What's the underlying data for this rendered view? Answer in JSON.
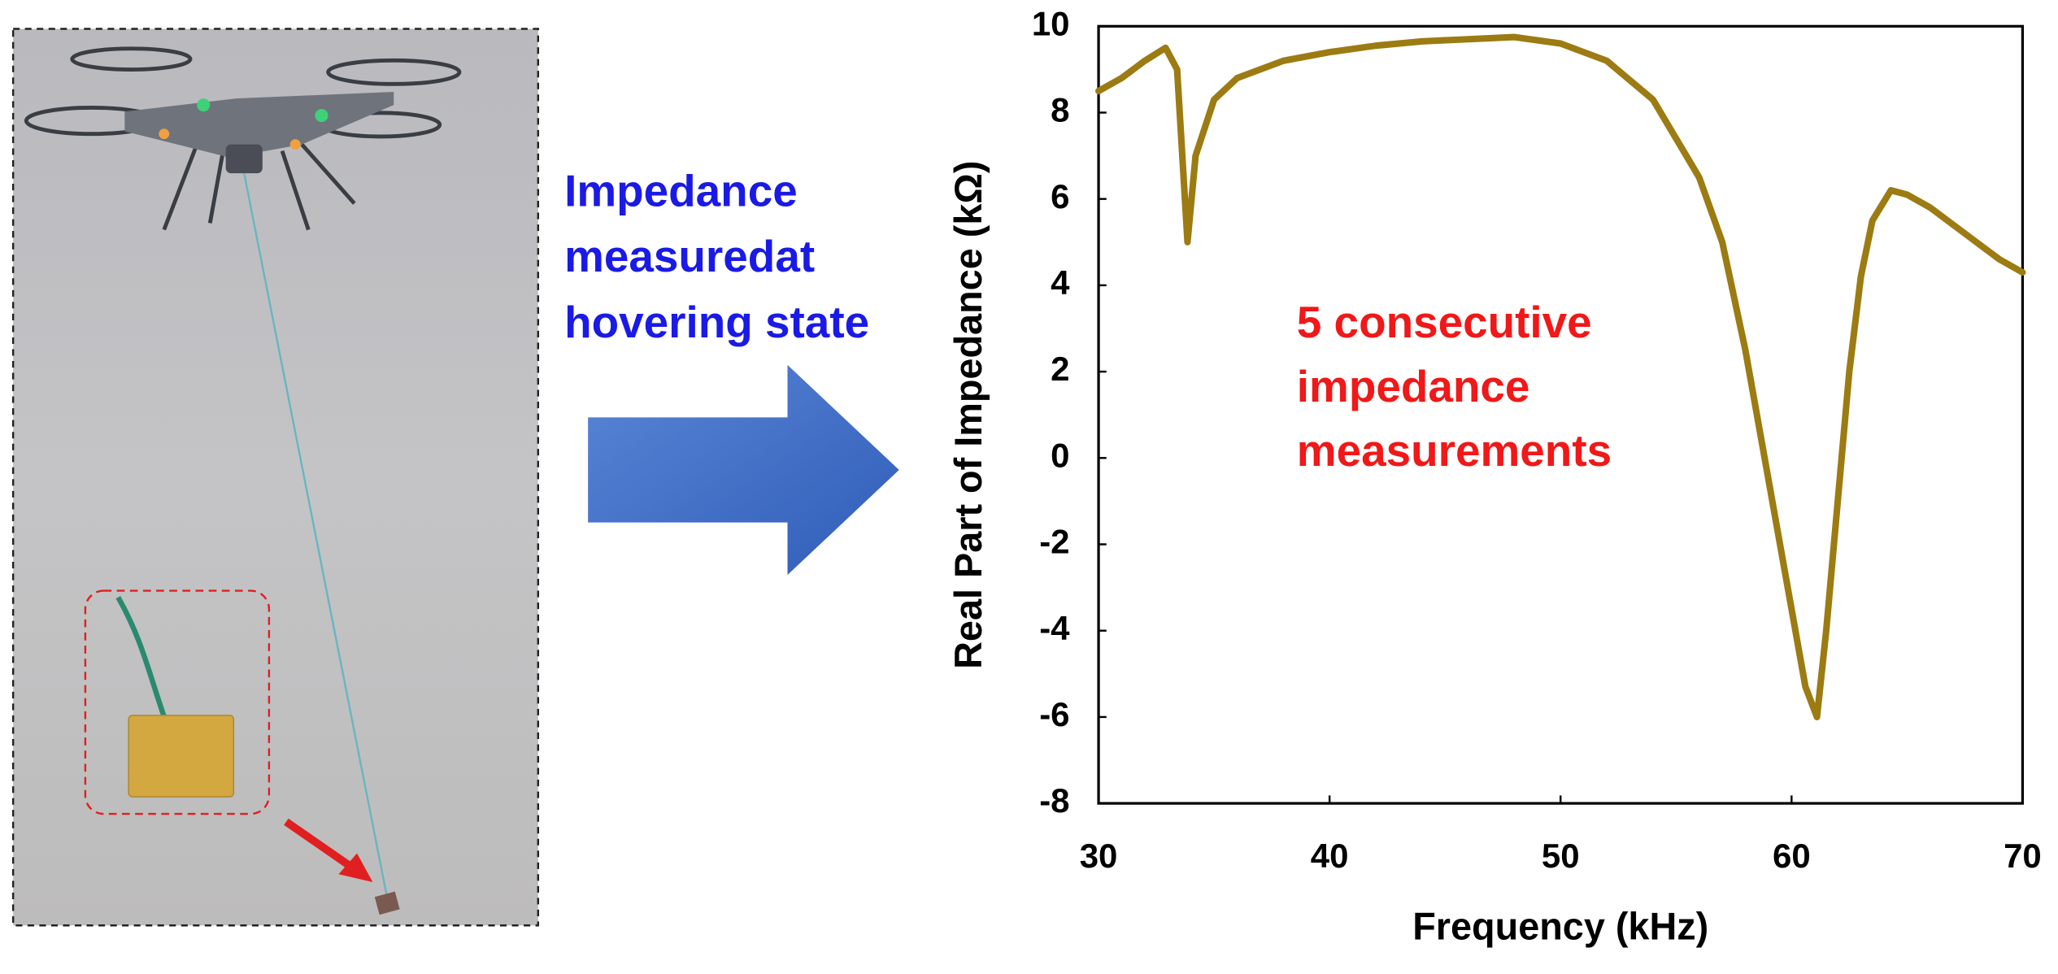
{
  "chart_data": {
    "type": "line",
    "left_text": [
      "Impedance",
      "measuredat",
      "hovering state"
    ],
    "annotation": [
      "5 consecutive",
      "impedance",
      "measurements"
    ],
    "x_label": "Frequency (kHz)",
    "y_label": "Real Part of Impedance (kΩ)",
    "xlim": [
      30,
      70
    ],
    "ylim": [
      -8,
      10
    ],
    "xticks": [
      30,
      40,
      50,
      60,
      70
    ],
    "yticks": [
      -8,
      -6,
      -4,
      -2,
      0,
      2,
      4,
      6,
      8,
      10
    ],
    "grid": false,
    "series": [
      {
        "color": "#9c7b12",
        "x": [
          30,
          31,
          32,
          32.9,
          33.4,
          33.85,
          34.2,
          35,
          36,
          38,
          40,
          42,
          44,
          46,
          48,
          50,
          52,
          54,
          56,
          57,
          58,
          59,
          60,
          60.6,
          61.1,
          61.5,
          62,
          62.5,
          63,
          63.5,
          64.3,
          65,
          66,
          67,
          68,
          69,
          70
        ],
        "values": [
          8.5,
          8.8,
          9.2,
          9.5,
          9.0,
          5.0,
          7.0,
          8.3,
          8.8,
          9.2,
          9.4,
          9.55,
          9.65,
          9.7,
          9.75,
          9.6,
          9.2,
          8.3,
          6.5,
          5.0,
          2.5,
          -0.5,
          -3.5,
          -5.3,
          -6.0,
          -4.0,
          -1.0,
          2.0,
          4.2,
          5.5,
          6.2,
          6.1,
          5.8,
          5.4,
          5.0,
          4.6,
          4.3
        ]
      }
    ]
  }
}
